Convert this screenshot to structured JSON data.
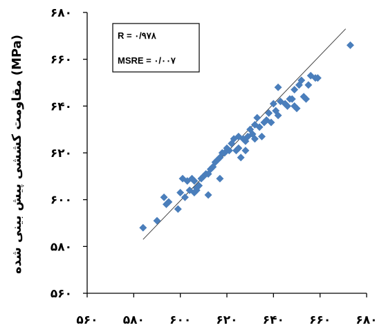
{
  "chart_data": {
    "type": "scatter",
    "title": "",
    "xlabel": "",
    "ylabel": "مقاومت کششی پیش بینی شده (MPa)",
    "xlim": [
      560,
      680
    ],
    "ylim": [
      560,
      680
    ],
    "x_ticks": [
      560,
      580,
      600,
      620,
      640,
      660,
      680
    ],
    "y_ticks": [
      560,
      580,
      600,
      620,
      640,
      660,
      680
    ],
    "x_tick_labels": [
      "۵۶۰",
      "۵۸۰",
      "۶۰۰",
      "۶۲۰",
      "۶۴۰",
      "۶۶۰",
      "۶۸۰"
    ],
    "y_tick_labels": [
      "۵۶۰",
      "۵۸۰",
      "۶۰۰",
      "۶۲۰",
      "۶۴۰",
      "۶۶۰",
      "۶۸۰"
    ],
    "grid": false,
    "marker": "diamond",
    "marker_color": "#4a7ebb",
    "annotations": [
      "R = ۰/۹۷۸",
      "MSRE = ۰/۰۰۷"
    ],
    "fit_line": {
      "x": [
        584,
        671
      ],
      "y": [
        583,
        673
      ]
    },
    "points": [
      [
        584,
        588
      ],
      [
        590,
        591
      ],
      [
        593,
        601
      ],
      [
        594,
        598
      ],
      [
        595,
        599
      ],
      [
        599,
        596
      ],
      [
        600,
        603
      ],
      [
        601,
        609
      ],
      [
        602,
        601
      ],
      [
        603,
        608
      ],
      [
        604,
        604
      ],
      [
        605,
        609
      ],
      [
        606,
        603
      ],
      [
        606,
        608
      ],
      [
        607,
        604
      ],
      [
        607,
        605
      ],
      [
        608,
        606
      ],
      [
        609,
        609
      ],
      [
        610,
        610
      ],
      [
        611,
        611
      ],
      [
        612,
        602
      ],
      [
        612,
        611
      ],
      [
        613,
        613
      ],
      [
        614,
        614
      ],
      [
        615,
        616
      ],
      [
        616,
        617
      ],
      [
        617,
        618
      ],
      [
        617,
        609
      ],
      [
        618,
        620
      ],
      [
        619,
        620
      ],
      [
        620,
        622
      ],
      [
        621,
        621
      ],
      [
        622,
        624
      ],
      [
        623,
        626
      ],
      [
        624,
        621
      ],
      [
        625,
        627
      ],
      [
        625,
        622
      ],
      [
        626,
        618
      ],
      [
        627,
        626
      ],
      [
        628,
        625
      ],
      [
        628,
        621
      ],
      [
        629,
        627
      ],
      [
        630,
        630
      ],
      [
        631,
        628
      ],
      [
        632,
        626
      ],
      [
        632,
        632
      ],
      [
        633,
        635
      ],
      [
        634,
        631
      ],
      [
        635,
        627
      ],
      [
        636,
        633
      ],
      [
        637,
        634
      ],
      [
        638,
        637
      ],
      [
        639,
        633
      ],
      [
        640,
        641
      ],
      [
        641,
        638
      ],
      [
        642,
        648
      ],
      [
        642,
        636
      ],
      [
        643,
        642
      ],
      [
        645,
        641
      ],
      [
        646,
        640
      ],
      [
        647,
        643
      ],
      [
        648,
        643
      ],
      [
        649,
        640
      ],
      [
        649,
        647
      ],
      [
        650,
        639
      ],
      [
        651,
        649
      ],
      [
        652,
        651
      ],
      [
        653,
        644
      ],
      [
        654,
        643
      ],
      [
        655,
        649
      ],
      [
        656,
        653
      ],
      [
        658,
        652
      ],
      [
        659,
        652
      ],
      [
        673,
        666
      ]
    ]
  }
}
